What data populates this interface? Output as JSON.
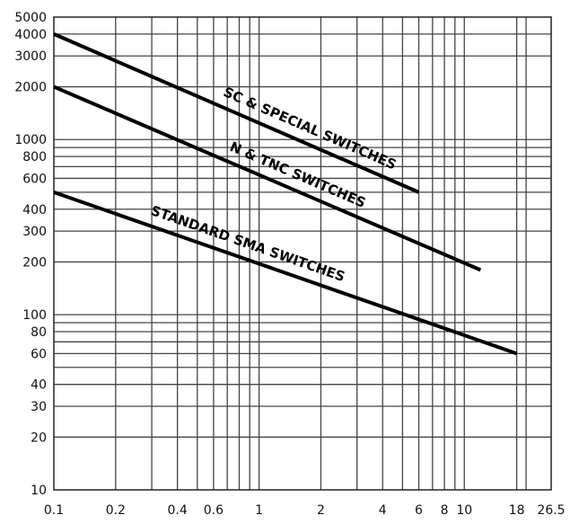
{
  "chart_data": {
    "type": "line",
    "title": "",
    "xlabel": "",
    "ylabel": "",
    "x_scale": "log",
    "y_scale": "log",
    "xlim": [
      0.1,
      26.5
    ],
    "ylim": [
      10,
      5000
    ],
    "grid": true,
    "x_ticks": [
      0.1,
      0.2,
      0.4,
      0.6,
      1,
      2,
      4,
      6,
      8,
      10,
      18,
      26.5
    ],
    "x_tick_labels": [
      "0.1",
      "0.2",
      "0.4",
      "0.6",
      "1",
      "2",
      "4",
      "6",
      "8",
      "10",
      "18",
      "26.5"
    ],
    "x_gridlines": [
      0.2,
      0.3,
      0.4,
      0.5,
      0.6,
      0.7,
      0.8,
      0.9,
      1,
      2,
      3,
      4,
      5,
      6,
      7,
      8,
      9,
      10,
      18,
      20
    ],
    "y_ticks": [
      5000,
      4000,
      3000,
      2000,
      1000,
      800,
      600,
      400,
      300,
      200,
      100,
      80,
      60,
      40,
      30,
      20,
      10
    ],
    "y_tick_labels": [
      "5000",
      "4000",
      "3000",
      "2000",
      "1000",
      "800",
      "600",
      "400",
      "300",
      "200",
      "100",
      "80",
      "60",
      "40",
      "30",
      "20",
      "10"
    ],
    "y_gridlines": [
      4000,
      3000,
      2000,
      1000,
      900,
      800,
      700,
      600,
      500,
      400,
      300,
      200,
      100,
      90,
      80,
      70,
      60,
      50,
      40,
      30,
      20
    ],
    "series": [
      {
        "name": "SC & SPECIAL SWITCHES",
        "x": [
          0.1,
          6
        ],
        "y": [
          4000,
          500
        ]
      },
      {
        "name": "N & TNC SWITCHES",
        "x": [
          0.1,
          12
        ],
        "y": [
          2000,
          180
        ]
      },
      {
        "name": "STANDARD SMA SWITCHES",
        "x": [
          0.1,
          18
        ],
        "y": [
          500,
          60
        ]
      }
    ]
  }
}
